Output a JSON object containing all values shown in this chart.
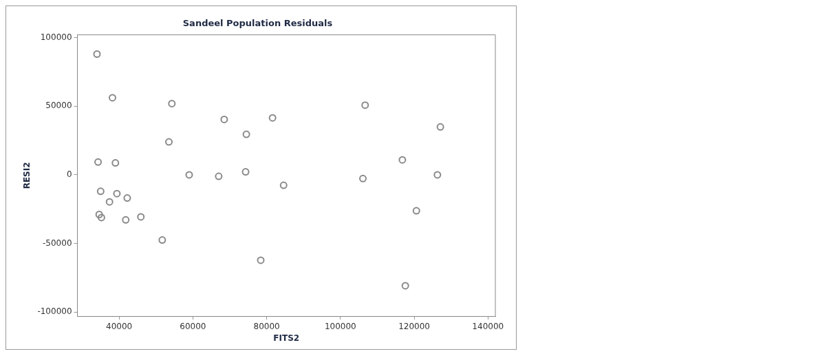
{
  "chart_data": {
    "type": "scatter",
    "title": "Sandeel Population Residuals",
    "xlabel": "FITS2",
    "ylabel": "RESI2",
    "x": [
      34000,
      38200,
      54300,
      68500,
      81600,
      74500,
      53500,
      34300,
      39000,
      59000,
      67000,
      74300,
      84600,
      35000,
      39400,
      42200,
      37400,
      34600,
      35200,
      41800,
      45900,
      51700,
      78400,
      106700,
      127100,
      116800,
      106100,
      126300,
      120600,
      117600
    ],
    "series": [
      {
        "color": "#8a8a8a",
        "values": [
          88000,
          56200,
          51900,
          40400,
          41500,
          29500,
          24000,
          9300,
          8700,
          0,
          -1100,
          2200,
          -7600,
          -12000,
          -13700,
          -16900,
          -19700,
          -28900,
          -31100,
          -32800,
          -30600,
          -47500,
          -62200,
          50800,
          34900,
          10900,
          -2700,
          0,
          -26200,
          -80800
        ]
      }
    ],
    "xlim": [
      28700,
      142000
    ],
    "ylim": [
      -103000,
      102000
    ],
    "xticks": [
      40000,
      60000,
      80000,
      100000,
      120000,
      140000
    ],
    "yticks": [
      -100000,
      -50000,
      0,
      50000,
      100000
    ],
    "marker": "circle",
    "grid": false,
    "legend": false
  }
}
